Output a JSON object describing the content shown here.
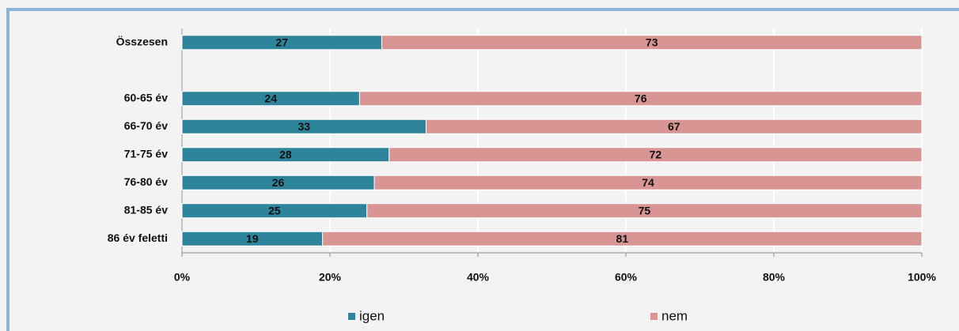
{
  "chart_data": {
    "type": "stacked-barh",
    "categories": [
      "Összesen",
      null,
      "60-65 év",
      "66-70 év",
      "71-75 év",
      "76-80 év",
      "81-85 év",
      "86 év feletti"
    ],
    "series": [
      {
        "name": "igen",
        "color": "#2e849b",
        "values": [
          27,
          null,
          24,
          33,
          28,
          26,
          25,
          19
        ]
      },
      {
        "name": "nem",
        "color": "#d99594",
        "values": [
          73,
          null,
          76,
          67,
          72,
          74,
          75,
          81
        ]
      }
    ],
    "xlim": [
      0,
      100
    ],
    "xticks": [
      {
        "value": 0,
        "label": "0%"
      },
      {
        "value": 20,
        "label": "20%"
      },
      {
        "value": 40,
        "label": "40%"
      },
      {
        "value": 60,
        "label": "60%"
      },
      {
        "value": 80,
        "label": "80%"
      },
      {
        "value": 100,
        "label": "100%"
      }
    ],
    "grid": true,
    "legend": "bottom"
  }
}
